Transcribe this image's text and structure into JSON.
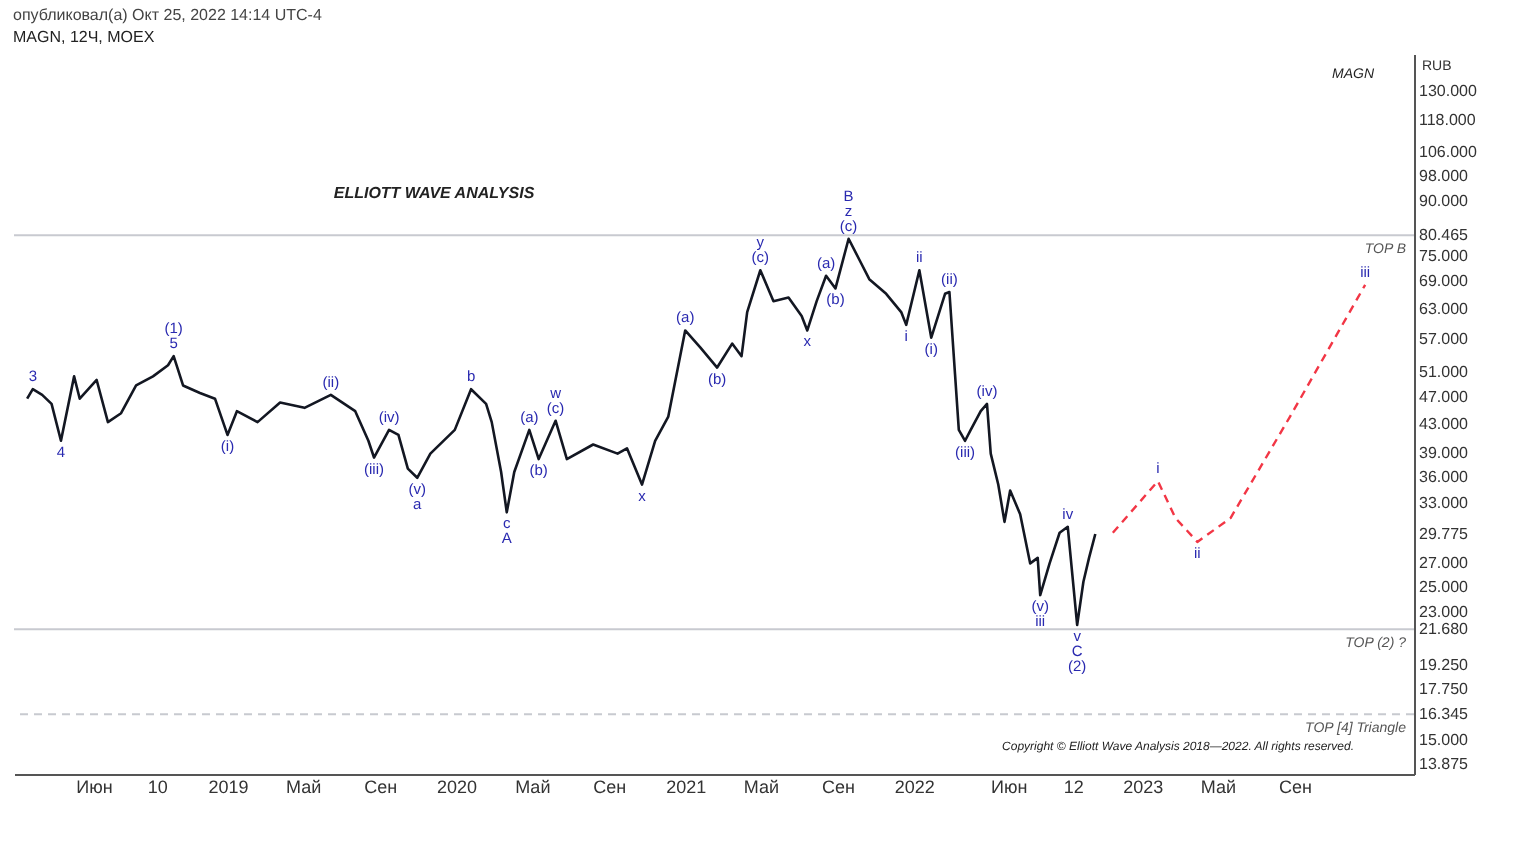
{
  "chart_data": {
    "type": "line",
    "title": "опубликовал(а) Окт 25, 2022 14:14 UTC-4",
    "subtitle": "MAGN, 12Ч, MOEX",
    "ylabel": "RUB",
    "log": true,
    "grid": false,
    "xlim": [
      "2018-01-25",
      "2024-03-10"
    ],
    "xticks": [
      {
        "value": "2018-06-01",
        "label": "Июн"
      },
      {
        "value": "2018-09-10",
        "label": "10"
      },
      {
        "value": "2019-01-01",
        "label": "2019"
      },
      {
        "value": "2019-05-01",
        "label": "Май"
      },
      {
        "value": "2019-09-01",
        "label": "Сен"
      },
      {
        "value": "2020-01-01",
        "label": "2020"
      },
      {
        "value": "2020-05-01",
        "label": "Май"
      },
      {
        "value": "2020-09-01",
        "label": "Сен"
      },
      {
        "value": "2021-01-01",
        "label": "2021"
      },
      {
        "value": "2021-05-01",
        "label": "Май"
      },
      {
        "value": "2021-09-01",
        "label": "Сен"
      },
      {
        "value": "2022-01-01",
        "label": "2022"
      },
      {
        "value": "2022-06-01",
        "label": "Июн"
      },
      {
        "value": "2022-09-12",
        "label": "12"
      },
      {
        "value": "2023-01-01",
        "label": "2023"
      },
      {
        "value": "2023-05-01",
        "label": "Май"
      },
      {
        "value": "2023-09-01",
        "label": "Сен"
      }
    ],
    "ylim": [
      13.4,
      147
    ],
    "yticks": [
      {
        "value": 130,
        "label": "130.000"
      },
      {
        "value": 118,
        "label": "118.000"
      },
      {
        "value": 106,
        "label": "106.000"
      },
      {
        "value": 98,
        "label": "98.000"
      },
      {
        "value": 90,
        "label": "90.000"
      },
      {
        "value": 80.465,
        "label": "80.465"
      },
      {
        "value": 75,
        "label": "75.000"
      },
      {
        "value": 69,
        "label": "69.000"
      },
      {
        "value": 63,
        "label": "63.000"
      },
      {
        "value": 57,
        "label": "57.000"
      },
      {
        "value": 51,
        "label": "51.000"
      },
      {
        "value": 47,
        "label": "47.000"
      },
      {
        "value": 43,
        "label": "43.000"
      },
      {
        "value": 39,
        "label": "39.000"
      },
      {
        "value": 36,
        "label": "36.000"
      },
      {
        "value": 33,
        "label": "33.000"
      },
      {
        "value": 29.775,
        "label": "29.775"
      },
      {
        "value": 27,
        "label": "27.000"
      },
      {
        "value": 25,
        "label": "25.000"
      },
      {
        "value": 23,
        "label": "23.000"
      },
      {
        "value": 21.68,
        "label": "21.680"
      },
      {
        "value": 19.25,
        "label": "19.250"
      },
      {
        "value": 17.75,
        "label": "17.750"
      },
      {
        "value": 16.345,
        "label": "16.345"
      },
      {
        "value": 15,
        "label": "15.000"
      },
      {
        "value": 13.875,
        "label": "13.875"
      }
    ],
    "series": [
      {
        "color": "#131722",
        "x": [
          "2018-02-15",
          "2018-02-24",
          "2018-03-11",
          "2018-03-26",
          "2018-04-10",
          "2018-05-01",
          "2018-05-10",
          "2018-06-06",
          "2018-06-24",
          "2018-07-15",
          "2018-08-08",
          "2018-09-04",
          "2018-09-28",
          "2018-10-07",
          "2018-10-22",
          "2018-11-18",
          "2018-12-12",
          "2019-01-01",
          "2019-01-16",
          "2019-02-18",
          "2019-03-26",
          "2019-05-04",
          "2019-06-15",
          "2019-07-24",
          "2019-08-14",
          "2019-08-23",
          "2019-09-16",
          "2019-10-01",
          "2019-10-16",
          "2019-10-31",
          "2019-11-21",
          "2019-12-30",
          "2020-01-25",
          "2020-02-18",
          "2020-02-27",
          "2020-03-13",
          "2020-03-22",
          "2020-04-03",
          "2020-04-27",
          "2020-05-12",
          "2020-06-08",
          "2020-06-26",
          "2020-08-07",
          "2020-09-15",
          "2020-09-30",
          "2020-10-24",
          "2020-11-14",
          "2020-12-05",
          "2021-01-01",
          "2021-01-25",
          "2021-02-21",
          "2021-03-17",
          "2021-04-01",
          "2021-04-10",
          "2021-05-01",
          "2021-05-22",
          "2021-06-15",
          "2021-07-06",
          "2021-07-15",
          "2021-07-30",
          "2021-08-14",
          "2021-08-29",
          "2021-09-19",
          "2021-10-07",
          "2021-10-22",
          "2021-11-18",
          "2021-12-12",
          "2021-12-20",
          "2022-01-10",
          "2022-01-29",
          "2022-02-20",
          "2022-02-27",
          "2022-03-08",
          "2022-03-14",
          "2022-03-24",
          "2022-04-02",
          "2022-04-18",
          "2022-04-28",
          "2022-05-04",
          "2022-05-16",
          "2022-05-26",
          "2022-06-04",
          "2022-06-20",
          "2022-07-06",
          "2022-07-18",
          "2022-07-22",
          "2022-08-06",
          "2022-08-22",
          "2022-09-04",
          "2022-09-19",
          "2022-09-29",
          "2022-10-08",
          "2022-10-18"
        ],
        "values": [
          46.7,
          48.2,
          47.3,
          45.9,
          40.6,
          50.3,
          46.7,
          49.7,
          43.2,
          44.5,
          48.8,
          50.3,
          52.2,
          53.8,
          48.8,
          47.6,
          46.7,
          41.4,
          44.8,
          43.2,
          46.1,
          45.3,
          47.3,
          44.8,
          40.6,
          38.4,
          42.1,
          41.4,
          37.0,
          35.9,
          38.9,
          42.1,
          48.2,
          45.9,
          43.2,
          36.6,
          32.0,
          36.6,
          42.1,
          38.2,
          43.4,
          38.2,
          40.1,
          38.9,
          39.6,
          35.1,
          40.6,
          44.0,
          58.6,
          55.4,
          51.8,
          56.1,
          53.8,
          62.3,
          71.6,
          64.6,
          65.4,
          61.5,
          58.6,
          64.6,
          70.3,
          67.4,
          79.5,
          73.9,
          69.5,
          66.2,
          62.3,
          59.7,
          71.6,
          57.2,
          66.2,
          66.6,
          50.6,
          42.1,
          40.6,
          42.1,
          44.8,
          45.9,
          38.9,
          35.1,
          31.0,
          34.4,
          31.8,
          27.0,
          27.5,
          24.3,
          27.0,
          29.9,
          30.5,
          22.0,
          25.4,
          27.5,
          29.775
        ]
      },
      {
        "color": "#f23645",
        "line_style": "dashed",
        "x": [
          "2022-11-15",
          "2023-01-26",
          "2023-02-23",
          "2023-03-30",
          "2023-05-22",
          "2023-08-25",
          "2023-12-23"
        ],
        "values": [
          29.9,
          35.5,
          31.4,
          29.0,
          31.4,
          44.0,
          68.2
        ]
      }
    ],
    "ref_lines": [
      {
        "axis": "y",
        "value": 80.465,
        "label": "TOP B",
        "color": "#c8cad0",
        "line_style": "solid"
      },
      {
        "axis": "y",
        "value": 21.68,
        "label": "TOP (2) ?",
        "color": "#c8cad0",
        "line_style": "solid"
      },
      {
        "axis": "y",
        "value": 16.345,
        "label": "TOP [4] Triangle",
        "color": "#c8cad0",
        "line_style": "dashed"
      }
    ],
    "annotations": [
      "MAGN",
      "ELLIOTT WAVE ANALYSIS",
      "Copyright © Elliott Wave Analysis 2018—2022. All rights reserved.",
      {
        "text": "3",
        "x": "2018-02-24",
        "y": 48.2
      },
      {
        "text": "4",
        "x": "2018-04-10",
        "y": 40.6
      },
      {
        "text": "(1)",
        "x": "2018-10-07",
        "y": 53.8
      },
      {
        "text": "5",
        "x": "2018-10-07",
        "y": 53.8
      },
      {
        "text": "(i)",
        "x": "2019-01-01",
        "y": 41.4
      },
      {
        "text": "(ii)",
        "x": "2019-06-15",
        "y": 47.3
      },
      {
        "text": "(iii)",
        "x": "2019-08-23",
        "y": 38.4
      },
      {
        "text": "(iv)",
        "x": "2019-09-16",
        "y": 42.1
      },
      {
        "text": "(v)",
        "x": "2019-10-31",
        "y": 35.9
      },
      {
        "text": "a",
        "x": "2019-10-31",
        "y": 35.9
      },
      {
        "text": "b",
        "x": "2020-01-25",
        "y": 48.2
      },
      {
        "text": "c",
        "x": "2020-03-22",
        "y": 32.0
      },
      {
        "text": "A",
        "x": "2020-03-22",
        "y": 32.0
      },
      {
        "text": "(a)",
        "x": "2020-04-27",
        "y": 42.1
      },
      {
        "text": "(b)",
        "x": "2020-05-12",
        "y": 38.2
      },
      {
        "text": "w",
        "x": "2020-06-08",
        "y": 43.4
      },
      {
        "text": "(c)",
        "x": "2020-06-08",
        "y": 43.4
      },
      {
        "text": "x",
        "x": "2020-10-24",
        "y": 35.1
      },
      {
        "text": "(a)",
        "x": "2021-01-01",
        "y": 58.6
      },
      {
        "text": "(b)",
        "x": "2021-02-21",
        "y": 51.8
      },
      {
        "text": "y",
        "x": "2021-05-01",
        "y": 71.6
      },
      {
        "text": "(c)",
        "x": "2021-05-01",
        "y": 71.6
      },
      {
        "text": "x",
        "x": "2021-07-15",
        "y": 58.6
      },
      {
        "text": "(a)",
        "x": "2021-08-14",
        "y": 70.3
      },
      {
        "text": "(b)",
        "x": "2021-08-29",
        "y": 67.4
      },
      {
        "text": "B",
        "x": "2021-09-19",
        "y": 79.5
      },
      {
        "text": "z",
        "x": "2021-09-19",
        "y": 79.5
      },
      {
        "text": "(c)",
        "x": "2021-09-19",
        "y": 79.5
      },
      {
        "text": "i",
        "x": "2021-12-20",
        "y": 59.7
      },
      {
        "text": "ii",
        "x": "2022-01-10",
        "y": 71.6
      },
      {
        "text": "(i)",
        "x": "2022-01-29",
        "y": 57.2
      },
      {
        "text": "(ii)",
        "x": "2022-02-27",
        "y": 66.6
      },
      {
        "text": "(iii)",
        "x": "2022-03-24",
        "y": 40.6
      },
      {
        "text": "(iv)",
        "x": "2022-04-28",
        "y": 45.9
      },
      {
        "text": "(v)",
        "x": "2022-07-22",
        "y": 24.3
      },
      {
        "text": "iii",
        "x": "2022-07-22",
        "y": 24.3
      },
      {
        "text": "iv",
        "x": "2022-09-04",
        "y": 30.5
      },
      {
        "text": "v",
        "x": "2022-09-19",
        "y": 22.0
      },
      {
        "text": "C",
        "x": "2022-09-19",
        "y": 22.0
      },
      {
        "text": "(2)",
        "x": "2022-09-19",
        "y": 22.0
      },
      {
        "text": "i",
        "x": "2023-01-26",
        "y": 35.5
      },
      {
        "text": "ii",
        "x": "2023-03-30",
        "y": 29.0
      },
      {
        "text": "iii",
        "x": "2023-12-23",
        "y": 68.2
      }
    ]
  }
}
